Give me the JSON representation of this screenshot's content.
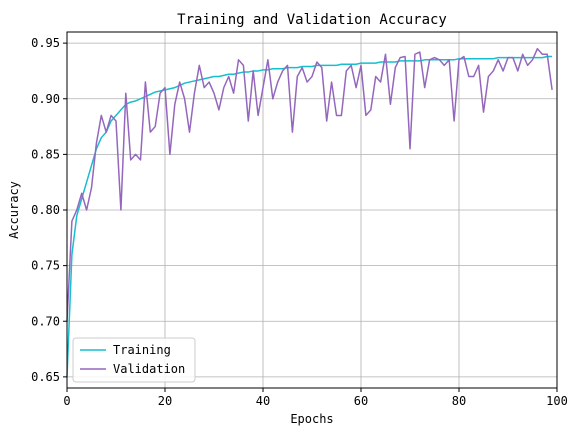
{
  "chart_data": {
    "type": "line",
    "title": "Training and Validation Accuracy",
    "xlabel": "Epochs",
    "ylabel": "Accuracy",
    "xlim": [
      0,
      100
    ],
    "ylim": [
      0.64,
      0.96
    ],
    "xticks": [
      0,
      20,
      40,
      60,
      80,
      100
    ],
    "yticks": [
      0.65,
      0.7,
      0.75,
      0.8,
      0.85,
      0.9,
      0.95
    ],
    "ytick_labels": [
      "0.65",
      "0.70",
      "0.75",
      "0.80",
      "0.85",
      "0.90",
      "0.95"
    ],
    "grid": true,
    "legend_position": "lower-left",
    "series": [
      {
        "name": "Training",
        "color": "#17becf",
        "x": [
          0,
          1,
          2,
          3,
          4,
          5,
          6,
          7,
          8,
          9,
          10,
          11,
          12,
          13,
          14,
          15,
          16,
          17,
          18,
          19,
          20,
          21,
          22,
          23,
          24,
          25,
          26,
          27,
          28,
          29,
          30,
          31,
          32,
          33,
          34,
          35,
          36,
          37,
          38,
          39,
          40,
          41,
          42,
          43,
          44,
          45,
          46,
          47,
          48,
          49,
          50,
          51,
          52,
          53,
          54,
          55,
          56,
          57,
          58,
          59,
          60,
          61,
          62,
          63,
          64,
          65,
          66,
          67,
          68,
          69,
          70,
          71,
          72,
          73,
          74,
          75,
          76,
          77,
          78,
          79,
          80,
          81,
          82,
          83,
          84,
          85,
          86,
          87,
          88,
          89,
          90,
          91,
          92,
          93,
          94,
          95,
          96,
          97,
          98,
          99
        ],
        "values": [
          0.65,
          0.76,
          0.795,
          0.81,
          0.825,
          0.84,
          0.855,
          0.865,
          0.87,
          0.88,
          0.885,
          0.89,
          0.895,
          0.897,
          0.898,
          0.9,
          0.902,
          0.904,
          0.906,
          0.907,
          0.908,
          0.909,
          0.91,
          0.912,
          0.914,
          0.915,
          0.916,
          0.917,
          0.918,
          0.919,
          0.92,
          0.92,
          0.921,
          0.922,
          0.922,
          0.923,
          0.924,
          0.924,
          0.925,
          0.925,
          0.926,
          0.926,
          0.927,
          0.927,
          0.927,
          0.928,
          0.928,
          0.928,
          0.929,
          0.929,
          0.929,
          0.93,
          0.93,
          0.93,
          0.93,
          0.93,
          0.931,
          0.931,
          0.931,
          0.931,
          0.932,
          0.932,
          0.932,
          0.932,
          0.933,
          0.933,
          0.933,
          0.933,
          0.934,
          0.934,
          0.934,
          0.934,
          0.934,
          0.935,
          0.935,
          0.935,
          0.935,
          0.935,
          0.935,
          0.935,
          0.936,
          0.936,
          0.936,
          0.936,
          0.936,
          0.936,
          0.936,
          0.936,
          0.937,
          0.937,
          0.937,
          0.937,
          0.937,
          0.937,
          0.937,
          0.937,
          0.937,
          0.937,
          0.938,
          0.938
        ]
      },
      {
        "name": "Validation",
        "color": "#9467bd",
        "x": [
          0,
          1,
          2,
          3,
          4,
          5,
          6,
          7,
          8,
          9,
          10,
          11,
          12,
          13,
          14,
          15,
          16,
          17,
          18,
          19,
          20,
          21,
          22,
          23,
          24,
          25,
          26,
          27,
          28,
          29,
          30,
          31,
          32,
          33,
          34,
          35,
          36,
          37,
          38,
          39,
          40,
          41,
          42,
          43,
          44,
          45,
          46,
          47,
          48,
          49,
          50,
          51,
          52,
          53,
          54,
          55,
          56,
          57,
          58,
          59,
          60,
          61,
          62,
          63,
          64,
          65,
          66,
          67,
          68,
          69,
          70,
          71,
          72,
          73,
          74,
          75,
          76,
          77,
          78,
          79,
          80,
          81,
          82,
          83,
          84,
          85,
          86,
          87,
          88,
          89,
          90,
          91,
          92,
          93,
          94,
          95,
          96,
          97,
          98,
          99
        ],
        "values": [
          0.7,
          0.79,
          0.8,
          0.815,
          0.8,
          0.82,
          0.86,
          0.885,
          0.87,
          0.885,
          0.88,
          0.8,
          0.905,
          0.845,
          0.85,
          0.845,
          0.915,
          0.87,
          0.875,
          0.905,
          0.91,
          0.85,
          0.895,
          0.915,
          0.9,
          0.87,
          0.905,
          0.93,
          0.91,
          0.915,
          0.905,
          0.89,
          0.91,
          0.92,
          0.905,
          0.935,
          0.93,
          0.88,
          0.925,
          0.885,
          0.91,
          0.935,
          0.9,
          0.915,
          0.925,
          0.93,
          0.87,
          0.92,
          0.928,
          0.915,
          0.92,
          0.933,
          0.928,
          0.88,
          0.915,
          0.885,
          0.885,
          0.925,
          0.93,
          0.91,
          0.93,
          0.885,
          0.89,
          0.92,
          0.915,
          0.94,
          0.895,
          0.928,
          0.937,
          0.938,
          0.855,
          0.94,
          0.942,
          0.91,
          0.935,
          0.937,
          0.935,
          0.93,
          0.935,
          0.88,
          0.935,
          0.938,
          0.92,
          0.92,
          0.93,
          0.888,
          0.92,
          0.925,
          0.935,
          0.925,
          0.937,
          0.937,
          0.925,
          0.94,
          0.93,
          0.935,
          0.945,
          0.94,
          0.94,
          0.908
        ]
      }
    ]
  }
}
